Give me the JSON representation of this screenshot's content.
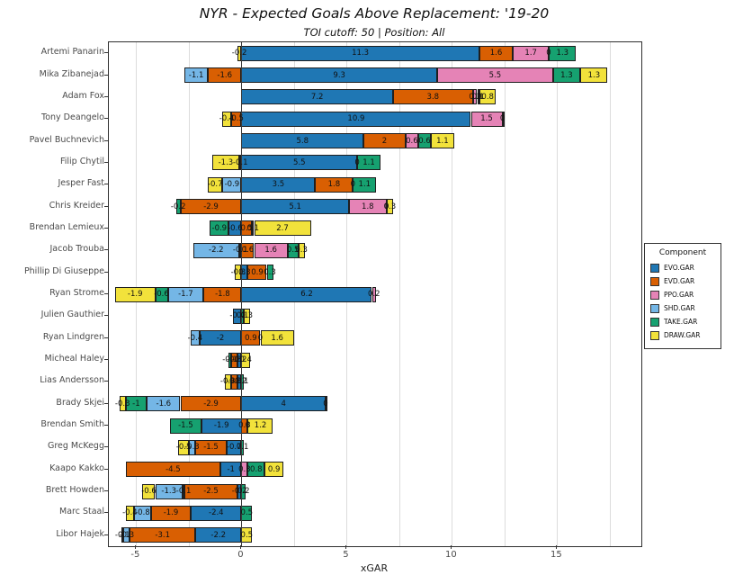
{
  "chart_data": {
    "type": "bar",
    "orientation": "horizontal-stacked",
    "title": "NYR - Expected Goals Above Replacement: '19-20",
    "subtitle": "TOI cutoff: 50 | Position: All",
    "xlabel": "xGAR",
    "xlim": [
      -6.3,
      19.0
    ],
    "xticks": [
      -5,
      0,
      5,
      10,
      15
    ],
    "grid_xs": [
      -5,
      -2.5,
      0,
      2.5,
      5,
      7.5,
      10,
      12.5,
      15,
      17.5
    ],
    "grid_on": true,
    "legend_position": "right",
    "legend": {
      "title": "Component",
      "entries": [
        {
          "label": "EVO.GAR",
          "color": "#1f77b4"
        },
        {
          "label": "EVD.GAR",
          "color": "#d95f02"
        },
        {
          "label": "PPO.GAR",
          "color": "#e583b6"
        },
        {
          "label": "SHD.GAR",
          "color": "#74b6e6"
        },
        {
          "label": "TAKE.GAR",
          "color": "#16a170"
        },
        {
          "label": "DRAW.GAR",
          "color": "#f2e23b"
        }
      ]
    },
    "components_order": [
      "EVO.GAR",
      "EVD.GAR",
      "PPO.GAR",
      "SHD.GAR",
      "TAKE.GAR",
      "DRAW.GAR"
    ],
    "players": [
      {
        "name": "Artemi Panarin",
        "values": {
          "EVO.GAR": 11.3,
          "EVD.GAR": 1.6,
          "PPO.GAR": 1.7,
          "SHD.GAR": 0,
          "TAKE.GAR": 1.3,
          "DRAW.GAR": -0.2
        }
      },
      {
        "name": "Mika Zibanejad",
        "values": {
          "EVO.GAR": 9.3,
          "EVD.GAR": -1.6,
          "PPO.GAR": 5.5,
          "SHD.GAR": -1.1,
          "TAKE.GAR": 1.3,
          "DRAW.GAR": 1.3
        }
      },
      {
        "name": "Adam Fox",
        "values": {
          "EVO.GAR": 7.2,
          "EVD.GAR": 3.8,
          "PPO.GAR": 0.2,
          "SHD.GAR": 0.1,
          "TAKE.GAR": 0,
          "DRAW.GAR": 0.8
        }
      },
      {
        "name": "Tony Deangelo",
        "values": {
          "EVO.GAR": 10.9,
          "EVD.GAR": -0.5,
          "PPO.GAR": 1.5,
          "SHD.GAR": 0,
          "DRAW.GAR": -0.4
        }
      },
      {
        "name": "Pavel Buchnevich",
        "values": {
          "EVO.GAR": 5.8,
          "EVD.GAR": 2,
          "PPO.GAR": 0.6,
          "TAKE.GAR": 0.6,
          "DRAW.GAR": 1.1
        }
      },
      {
        "name": "Filip Chytil",
        "values": {
          "EVO.GAR": 5.5,
          "EVD.GAR": -0.1,
          "PPO.GAR": 0,
          "TAKE.GAR": 1.1,
          "DRAW.GAR": -1.3
        }
      },
      {
        "name": "Jesper Fast",
        "values": {
          "EVO.GAR": 3.5,
          "EVD.GAR": 1.8,
          "PPO.GAR": 0,
          "SHD.GAR": -0.9,
          "TAKE.GAR": 1.1,
          "DRAW.GAR": -0.7
        }
      },
      {
        "name": "Chris Kreider",
        "values": {
          "EVO.GAR": 5.1,
          "EVD.GAR": -2.9,
          "PPO.GAR": 1.8,
          "SHD.GAR": 0,
          "TAKE.GAR": -0.2,
          "DRAW.GAR": 0.3
        }
      },
      {
        "name": "Brendan Lemieux",
        "values": {
          "EVO.GAR": -0.6,
          "EVD.GAR": 0.5,
          "PPO.GAR": 0.1,
          "TAKE.GAR": -0.9,
          "DRAW.GAR": 2.7
        }
      },
      {
        "name": "Jacob Trouba",
        "values": {
          "EVO.GAR": -0.1,
          "EVD.GAR": 0.6,
          "PPO.GAR": 1.6,
          "SHD.GAR": -2.2,
          "TAKE.GAR": 0.5,
          "DRAW.GAR": 0.3
        }
      },
      {
        "name": "Phillip Di Giuseppe",
        "values": {
          "EVO.GAR": 0.3,
          "EVD.GAR": 0.9,
          "TAKE.GAR": 0.3,
          "DRAW.GAR": -0.3
        }
      },
      {
        "name": "Ryan Strome",
        "values": {
          "EVO.GAR": 6.2,
          "EVD.GAR": -1.8,
          "PPO.GAR": 0.2,
          "SHD.GAR": -1.7,
          "TAKE.GAR": -0.6,
          "DRAW.GAR": -1.9
        }
      },
      {
        "name": "Julien Gauthier",
        "values": {
          "EVO.GAR": -0.4,
          "TAKE.GAR": 0.1,
          "DRAW.GAR": 0.3
        }
      },
      {
        "name": "Ryan Lindgren",
        "values": {
          "EVO.GAR": -2,
          "EVD.GAR": 0.9,
          "PPO.GAR": 0,
          "SHD.GAR": -0.4,
          "DRAW.GAR": 1.6
        }
      },
      {
        "name": "Micheal Haley",
        "values": {
          "EVO.GAR": -0.2,
          "EVD.GAR": -0.3,
          "TAKE.GAR": -0.1,
          "DRAW.GAR": 0.4
        }
      },
      {
        "name": "Lias Andersson",
        "values": {
          "EVO.GAR": -0.2,
          "EVD.GAR": -0.3,
          "TAKE.GAR": 0.1,
          "DRAW.GAR": -0.3
        }
      },
      {
        "name": "Brady Skjei",
        "values": {
          "EVO.GAR": 4,
          "EVD.GAR": -2.9,
          "PPO.GAR": 0,
          "SHD.GAR": -1.6,
          "TAKE.GAR": -1,
          "DRAW.GAR": -0.3
        }
      },
      {
        "name": "Brendan Smith",
        "values": {
          "EVO.GAR": -1.9,
          "EVD.GAR": 0.3,
          "PPO.GAR": 0,
          "TAKE.GAR": -1.5,
          "DRAW.GAR": 1.2
        }
      },
      {
        "name": "Greg McKegg",
        "values": {
          "EVO.GAR": -0.7,
          "EVD.GAR": -1.5,
          "SHD.GAR": -0.3,
          "TAKE.GAR": 0.1,
          "DRAW.GAR": -0.5
        }
      },
      {
        "name": "Kaapo Kakko",
        "values": {
          "EVO.GAR": -1,
          "EVD.GAR": -4.5,
          "PPO.GAR": 0.3,
          "TAKE.GAR": 0.8,
          "DRAW.GAR": 0.9
        }
      },
      {
        "name": "Brett Howden",
        "values": {
          "EVO.GAR": -0.2,
          "EVD.GAR": -2.5,
          "PPO.GAR": -0.1,
          "SHD.GAR": -1.3,
          "TAKE.GAR": 0.2,
          "DRAW.GAR": -0.6
        }
      },
      {
        "name": "Marc Staal",
        "values": {
          "EVO.GAR": -2.4,
          "EVD.GAR": -1.9,
          "SHD.GAR": -0.8,
          "TAKE.GAR": 0.5,
          "DRAW.GAR": -0.4
        }
      },
      {
        "name": "Libor Hajek",
        "values": {
          "EVO.GAR": -2.2,
          "EVD.GAR": -3.1,
          "SHD.GAR": -0.3,
          "TAKE.GAR": -0.1,
          "DRAW.GAR": 0.5
        }
      }
    ]
  }
}
